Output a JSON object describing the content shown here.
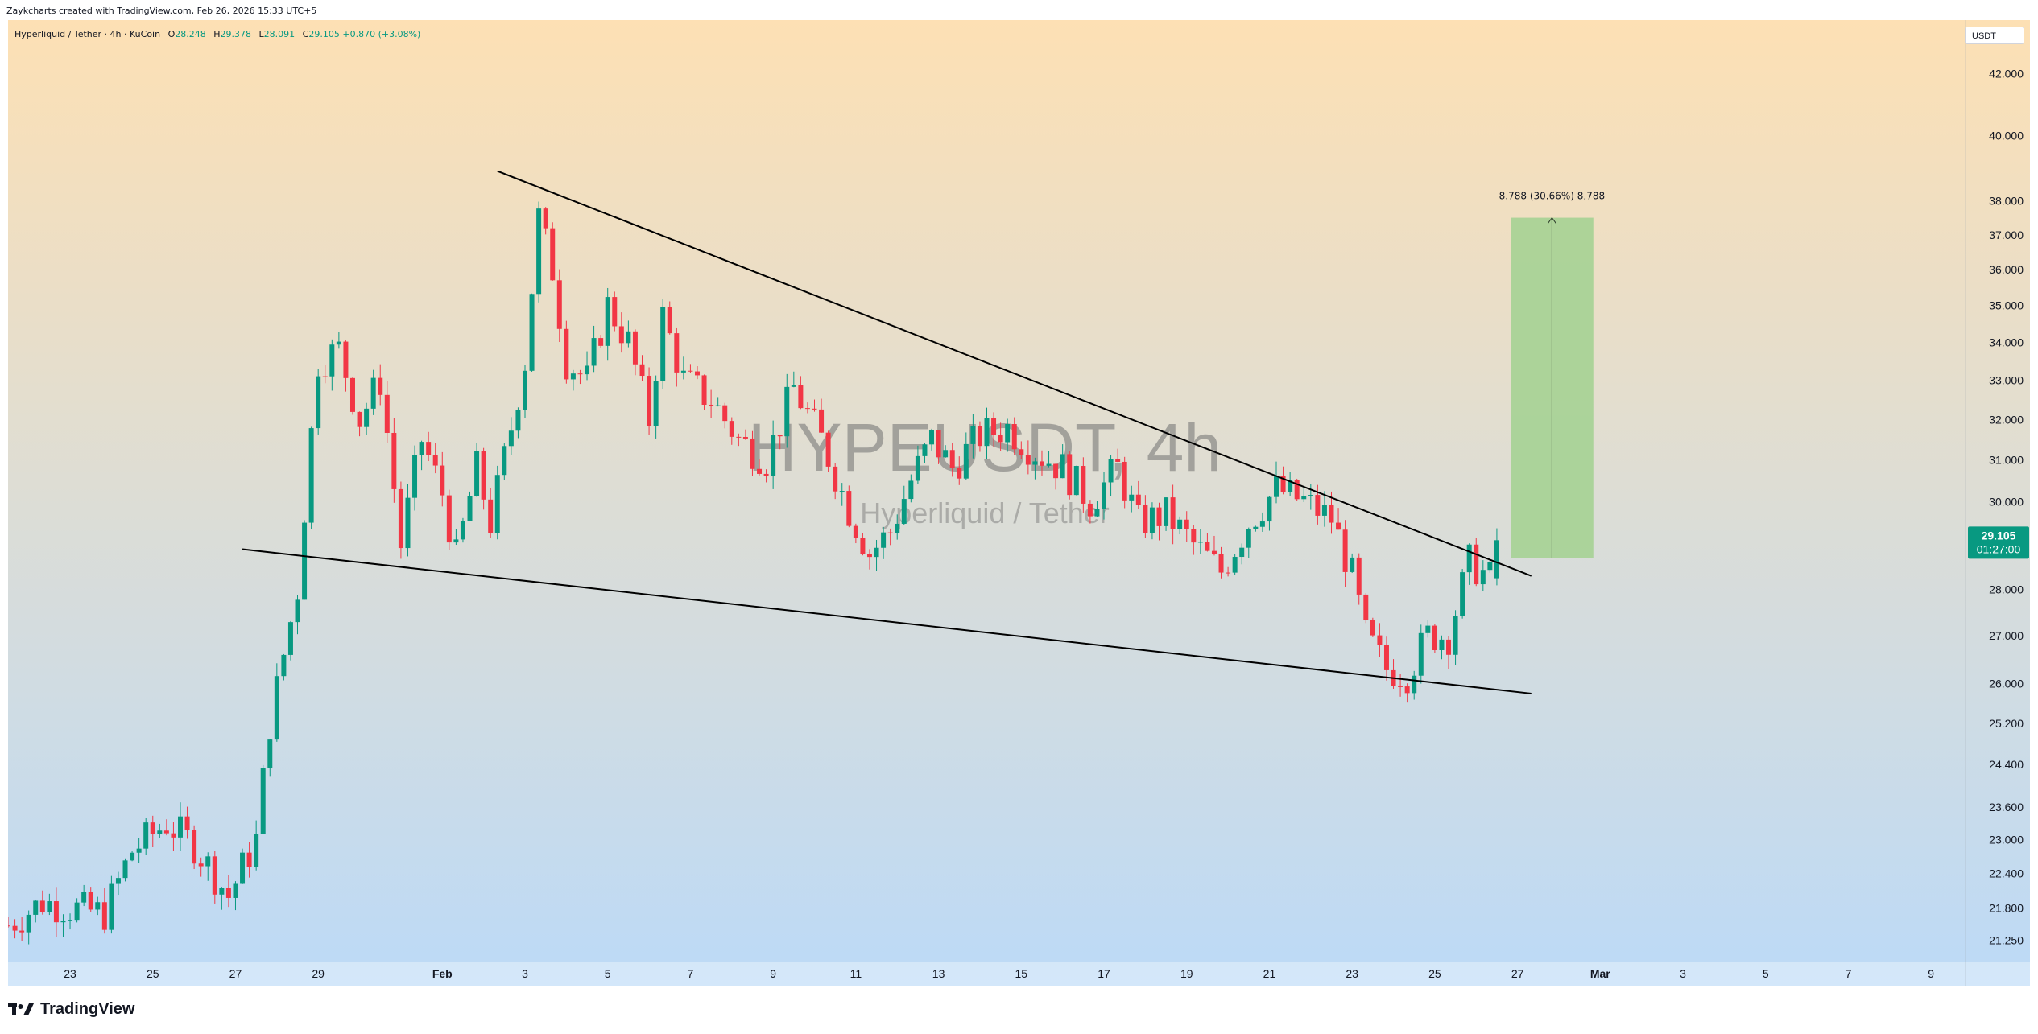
{
  "attribution": "Zaykcharts created with TradingView.com, Feb 26, 2026 15:33 UTC+5",
  "legend": {
    "symbol": "Hyperliquid / Tether · 4h · KuCoin",
    "open_label": "O",
    "open": "28.248",
    "high_label": "H",
    "high": "29.378",
    "low_label": "L",
    "low": "28.091",
    "close_label": "C",
    "close": "29.105",
    "change": "+0.870 (+3.08%)"
  },
  "currency": "USDT",
  "watermark": {
    "ticker": "HYPEUSDT, 4h",
    "name": "Hyperliquid / Tether"
  },
  "brand": "TradingView",
  "logo_icon": "tradingview-logo-icon",
  "colors": {
    "up": "#089981",
    "down": "#f23645",
    "line": "#000000",
    "target_box": "#a5d193",
    "gradient_top": "#fde0b4",
    "gradient_bottom": "#bcdaf7"
  },
  "chart_data": {
    "type": "candlestick",
    "symbol": "HYPEUSDT",
    "timeframe": "4h",
    "exchange": "KuCoin",
    "y_scale": "log",
    "ylim": [
      20.9,
      43.8
    ],
    "y_ticks": [
      "42.000",
      "40.000",
      "38.000",
      "37.000",
      "36.000",
      "35.000",
      "34.000",
      "33.000",
      "32.000",
      "31.000",
      "30.000",
      "28.000",
      "27.000",
      "26.000",
      "25.200",
      "24.400",
      "23.600",
      "23.000",
      "22.400",
      "21.800",
      "21.250"
    ],
    "x_range": [
      "2026-01-21T12:00",
      "2026-03-09T20:00"
    ],
    "x_ticks": [
      {
        "label": "23",
        "date": "2026-01-23"
      },
      {
        "label": "25",
        "date": "2026-01-25"
      },
      {
        "label": "27",
        "date": "2026-01-27"
      },
      {
        "label": "29",
        "date": "2026-01-29"
      },
      {
        "label": "Feb",
        "date": "2026-02-01"
      },
      {
        "label": "3",
        "date": "2026-02-03"
      },
      {
        "label": "5",
        "date": "2026-02-05"
      },
      {
        "label": "7",
        "date": "2026-02-07"
      },
      {
        "label": "9",
        "date": "2026-02-09"
      },
      {
        "label": "11",
        "date": "2026-02-11"
      },
      {
        "label": "13",
        "date": "2026-02-13"
      },
      {
        "label": "15",
        "date": "2026-02-15"
      },
      {
        "label": "17",
        "date": "2026-02-17"
      },
      {
        "label": "19",
        "date": "2026-02-19"
      },
      {
        "label": "21",
        "date": "2026-02-21"
      },
      {
        "label": "23",
        "date": "2026-02-23"
      },
      {
        "label": "25",
        "date": "2026-02-25"
      },
      {
        "label": "27",
        "date": "2026-02-27"
      },
      {
        "label": "Mar",
        "date": "2026-03-01"
      },
      {
        "label": "3",
        "date": "2026-03-03"
      },
      {
        "label": "5",
        "date": "2026-03-05"
      },
      {
        "label": "7",
        "date": "2026-03-07"
      },
      {
        "label": "9",
        "date": "2026-03-09"
      }
    ],
    "anchors": [
      {
        "t": "2026-01-21T12:00",
        "c": 21.5
      },
      {
        "t": "2026-01-22T08:00",
        "c": 21.9
      },
      {
        "t": "2026-01-23T00:00",
        "c": 21.8
      },
      {
        "t": "2026-01-23T20:00",
        "c": 21.7
      },
      {
        "t": "2026-01-24T12:00",
        "c": 22.8
      },
      {
        "t": "2026-01-25T08:00",
        "c": 23.3
      },
      {
        "t": "2026-01-26T00:00",
        "c": 22.9
      },
      {
        "t": "2026-01-26T20:00",
        "c": 22.0
      },
      {
        "t": "2026-01-27T12:00",
        "c": 23.0
      },
      {
        "t": "2026-01-27T20:00",
        "c": 25.2
      },
      {
        "t": "2026-01-28T12:00",
        "c": 28.0
      },
      {
        "t": "2026-01-29T00:00",
        "c": 33.5
      },
      {
        "t": "2026-01-29T12:00",
        "c": 33.8
      },
      {
        "t": "2026-01-30T00:00",
        "c": 32.0
      },
      {
        "t": "2026-01-30T12:00",
        "c": 33.0
      },
      {
        "t": "2026-01-31T00:00",
        "c": 29.0
      },
      {
        "t": "2026-01-31T12:00",
        "c": 31.5
      },
      {
        "t": "2026-02-01T00:00",
        "c": 30.2
      },
      {
        "t": "2026-02-01T08:00",
        "c": 28.7
      },
      {
        "t": "2026-02-01T20:00",
        "c": 30.8
      },
      {
        "t": "2026-02-02T04:00",
        "c": 29.5
      },
      {
        "t": "2026-02-02T16:00",
        "c": 31.8
      },
      {
        "t": "2026-02-03T00:00",
        "c": 33.5
      },
      {
        "t": "2026-02-03T08:00",
        "c": 37.5
      },
      {
        "t": "2026-02-03T16:00",
        "c": 36.0
      },
      {
        "t": "2026-02-04T00:00",
        "c": 33.5
      },
      {
        "t": "2026-02-04T12:00",
        "c": 33.0
      },
      {
        "t": "2026-02-05T00:00",
        "c": 35.0
      },
      {
        "t": "2026-02-05T12:00",
        "c": 34.0
      },
      {
        "t": "2026-02-06T00:00",
        "c": 32.0
      },
      {
        "t": "2026-02-06T08:00",
        "c": 34.7
      },
      {
        "t": "2026-02-06T20:00",
        "c": 33.0
      },
      {
        "t": "2026-02-07T12:00",
        "c": 32.5
      },
      {
        "t": "2026-02-08T04:00",
        "c": 31.5
      },
      {
        "t": "2026-02-08T20:00",
        "c": 31.0
      },
      {
        "t": "2026-02-09T12:00",
        "c": 32.8
      },
      {
        "t": "2026-02-10T04:00",
        "c": 31.5
      },
      {
        "t": "2026-02-10T20:00",
        "c": 29.8
      },
      {
        "t": "2026-02-11T08:00",
        "c": 28.8
      },
      {
        "t": "2026-02-11T20:00",
        "c": 29.3
      },
      {
        "t": "2026-02-12T08:00",
        "c": 30.5
      },
      {
        "t": "2026-02-12T20:00",
        "c": 31.5
      },
      {
        "t": "2026-02-13T08:00",
        "c": 30.8
      },
      {
        "t": "2026-02-14T00:00",
        "c": 31.6
      },
      {
        "t": "2026-02-14T16:00",
        "c": 31.8
      },
      {
        "t": "2026-02-15T08:00",
        "c": 31.2
      },
      {
        "t": "2026-02-16T00:00",
        "c": 30.8
      },
      {
        "t": "2026-02-16T16:00",
        "c": 30.0
      },
      {
        "t": "2026-02-17T08:00",
        "c": 30.8
      },
      {
        "t": "2026-02-17T20:00",
        "c": 29.5
      },
      {
        "t": "2026-02-18T12:00",
        "c": 29.7
      },
      {
        "t": "2026-02-19T04:00",
        "c": 29.0
      },
      {
        "t": "2026-02-19T20:00",
        "c": 28.4
      },
      {
        "t": "2026-02-20T12:00",
        "c": 29.5
      },
      {
        "t": "2026-02-21T04:00",
        "c": 30.3
      },
      {
        "t": "2026-02-21T20:00",
        "c": 30.0
      },
      {
        "t": "2026-02-22T12:00",
        "c": 29.6
      },
      {
        "t": "2026-02-23T00:00",
        "c": 28.3
      },
      {
        "t": "2026-02-23T08:00",
        "c": 27.0
      },
      {
        "t": "2026-02-23T20:00",
        "c": 26.3
      },
      {
        "t": "2026-02-24T08:00",
        "c": 26.2
      },
      {
        "t": "2026-02-24T20:00",
        "c": 27.0
      },
      {
        "t": "2026-02-25T08:00",
        "c": 27.0
      },
      {
        "t": "2026-02-25T20:00",
        "c": 28.6
      },
      {
        "t": "2026-02-26T08:00",
        "c": 28.25
      },
      {
        "t": "2026-02-26T12:00",
        "c": 29.105
      }
    ],
    "last_candle": {
      "t": "2026-02-26T12:00",
      "o": 28.248,
      "h": 29.378,
      "l": 28.091,
      "c": 29.105
    },
    "trendlines": [
      {
        "name": "upper-resistance",
        "from": {
          "t": "2026-02-02T08:00",
          "price": 38.9
        },
        "to": {
          "t": "2026-02-27T08:00",
          "price": 28.3
        }
      },
      {
        "name": "lower-support",
        "from": {
          "t": "2026-01-27T04:00",
          "price": 28.9
        },
        "to": {
          "t": "2026-02-27T08:00",
          "price": 25.8
        }
      }
    ],
    "target_box": {
      "t_start": "2026-02-26T20:00",
      "t_end": "2026-02-28T20:00",
      "price_low": 28.7,
      "price_high": 37.5
    },
    "measure_label": "8.788 (30.66%) 8,788",
    "price_label": {
      "price": "29.105",
      "countdown": "01:27:00"
    }
  }
}
